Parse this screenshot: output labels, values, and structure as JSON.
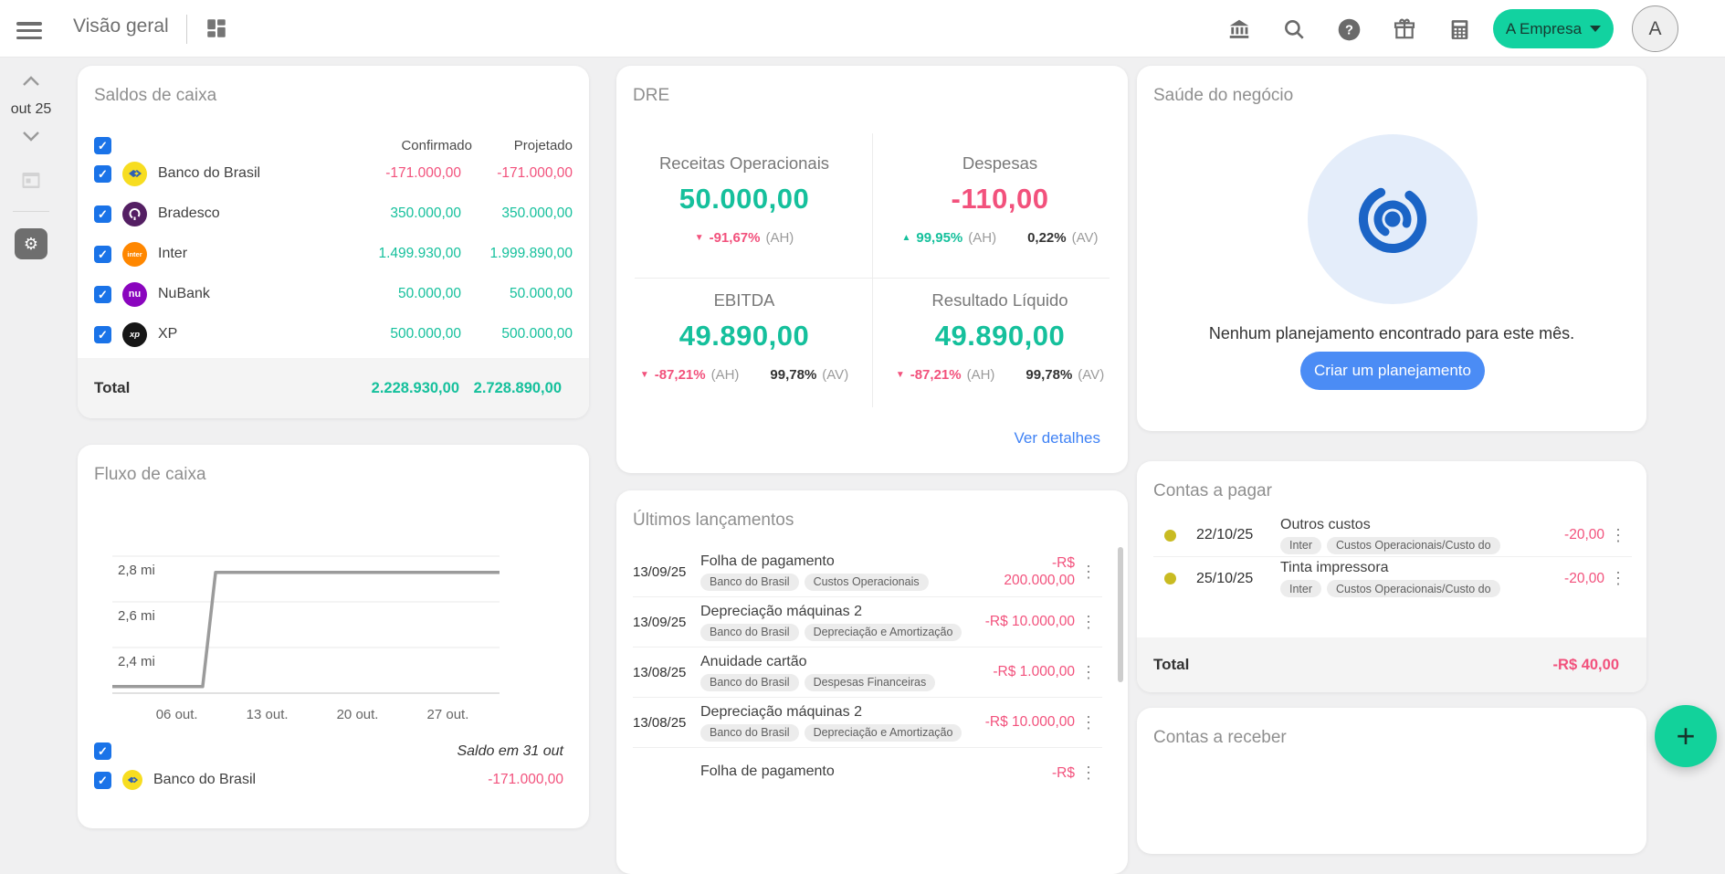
{
  "colors": {
    "teal": "#15c09c",
    "pink": "#f2517c",
    "blue": "#4b8cf5",
    "brand_button": "#12d2a0",
    "checkbox": "#1a73e8"
  },
  "topbar": {
    "title": "Visão geral",
    "company_button": "A Empresa",
    "avatar_initial": "A"
  },
  "sidebar": {
    "month": "out 25"
  },
  "saldos": {
    "title": "Saldos de caixa",
    "col_confirmado": "Confirmado",
    "col_projetado": "Projetado",
    "rows": [
      {
        "name": "Banco do Brasil",
        "confirmado": "-171.000,00",
        "projetado": "-171.000,00",
        "tone": "neg"
      },
      {
        "name": "Bradesco",
        "confirmado": "350.000,00",
        "projetado": "350.000,00",
        "tone": "pos"
      },
      {
        "name": "Inter",
        "confirmado": "1.499.930,00",
        "projetado": "1.999.890,00",
        "tone": "pos"
      },
      {
        "name": "NuBank",
        "confirmado": "50.000,00",
        "projetado": "50.000,00",
        "tone": "pos"
      },
      {
        "name": "XP",
        "confirmado": "500.000,00",
        "projetado": "500.000,00",
        "tone": "pos"
      }
    ],
    "total_label": "Total",
    "total_confirmado": "2.228.930,00",
    "total_projetado": "2.728.890,00"
  },
  "dre": {
    "title": "DRE",
    "metrics": [
      {
        "label": "Receitas Operacionais",
        "value": "50.000,00",
        "value_tone": "pos",
        "ah_arrow": "▼",
        "ah_value": "-91,67%",
        "ah_tone": "neg",
        "ah_suffix": "(AH)",
        "av_value": "",
        "av_suffix": ""
      },
      {
        "label": "Despesas",
        "value": "-110,00",
        "value_tone": "neg",
        "ah_arrow": "▲",
        "ah_value": "99,95%",
        "ah_tone": "pos",
        "ah_suffix": "(AH)",
        "av_value": "0,22%",
        "av_suffix": "(AV)"
      },
      {
        "label": "EBITDA",
        "value": "49.890,00",
        "value_tone": "pos",
        "ah_arrow": "▼",
        "ah_value": "-87,21%",
        "ah_tone": "neg",
        "ah_suffix": "(AH)",
        "av_value": "99,78%",
        "av_suffix": "(AV)"
      },
      {
        "label": "Resultado Líquido",
        "value": "49.890,00",
        "value_tone": "pos",
        "ah_arrow": "▼",
        "ah_value": "-87,21%",
        "ah_tone": "neg",
        "ah_suffix": "(AH)",
        "av_value": "99,78%",
        "av_suffix": "(AV)"
      }
    ],
    "details_link": "Ver detalhes"
  },
  "saude": {
    "title": "Saúde do negócio",
    "message": "Nenhum planejamento encontrado para este mês.",
    "button": "Criar um planejamento"
  },
  "fluxo": {
    "title": "Fluxo de caixa",
    "legend_label": "Saldo em 31 out",
    "partial_row": {
      "name": "Banco do Brasil",
      "value": "-171.000,00"
    }
  },
  "chart_data": {
    "type": "line",
    "title": "Fluxo de caixa",
    "xlabel": "",
    "ylabel": "",
    "x_range": [
      1,
      31
    ],
    "x_ticks": [
      {
        "label": "06 out.",
        "day": 6
      },
      {
        "label": "13 out.",
        "day": 13
      },
      {
        "label": "20 out.",
        "day": 20
      },
      {
        "label": "27 out.",
        "day": 27
      }
    ],
    "y_ticks": [
      {
        "label": "2,8 mi",
        "value": 2800000
      },
      {
        "label": "2,6 mi",
        "value": 2600000
      },
      {
        "label": "2,4 mi",
        "value": 2400000
      }
    ],
    "y_base": 2200000,
    "grid": true,
    "legend_position": "bottom",
    "series": [
      {
        "name": "Saldo em 31 out",
        "color": "#9b9b9b",
        "points": [
          {
            "day": 1,
            "value": 2228930
          },
          {
            "day": 8,
            "value": 2228930
          },
          {
            "day": 9,
            "value": 2728890
          },
          {
            "day": 31,
            "value": 2728890
          }
        ]
      }
    ]
  },
  "lancamentos": {
    "title": "Últimos lançamentos",
    "rows": [
      {
        "date": "13/09/25",
        "title": "Folha de pagamento",
        "tags": [
          "Banco do Brasil",
          "Custos Operacionais"
        ],
        "amount": "-R$ 200.000,00"
      },
      {
        "date": "13/09/25",
        "title": "Depreciação máquinas 2",
        "tags": [
          "Banco do Brasil",
          "Depreciação e Amortização"
        ],
        "amount": "-R$ 10.000,00"
      },
      {
        "date": "13/08/25",
        "title": "Anuidade cartão",
        "tags": [
          "Banco do Brasil",
          "Despesas Financeiras"
        ],
        "amount": "-R$ 1.000,00"
      },
      {
        "date": "13/08/25",
        "title": "Depreciação máquinas 2",
        "tags": [
          "Banco do Brasil",
          "Depreciação e Amortização"
        ],
        "amount": "-R$ 10.000,00"
      },
      {
        "date": "",
        "title": "Folha de pagamento",
        "tags": [],
        "amount": "-R$"
      }
    ]
  },
  "pagar": {
    "title": "Contas a pagar",
    "rows": [
      {
        "date": "22/10/25",
        "title": "Outros custos",
        "tags": [
          "Inter",
          "Custos Operacionais/Custo do"
        ],
        "amount": "-20,00"
      },
      {
        "date": "25/10/25",
        "title": "Tinta impressora",
        "tags": [
          "Inter",
          "Custos Operacionais/Custo do"
        ],
        "amount": "-20,00"
      }
    ],
    "total_label": "Total",
    "total_value": "-R$ 40,00"
  },
  "receber": {
    "title": "Contas a receber"
  },
  "fab": {
    "label": "+"
  }
}
